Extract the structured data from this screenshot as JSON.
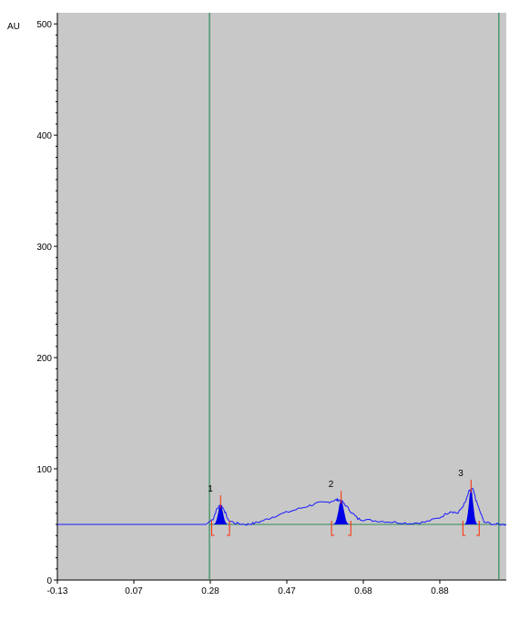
{
  "chart_data": {
    "type": "line",
    "ylabel": "AU",
    "ylim": [
      0,
      510
    ],
    "y_ticks": [
      0,
      100,
      200,
      300,
      400,
      500
    ],
    "x_tick_labels": [
      "-0.13",
      "0.07",
      "0.28",
      "0.47",
      "0.68",
      "0.88"
    ],
    "xlim": [
      -0.13,
      1.08
    ],
    "grid": false,
    "background_color": "#c8c8c8",
    "trace_color": "#1a1aff",
    "peak_fill_color": "#0000e6",
    "baseline_color": "#2e8b57",
    "marker_color": "#ff2a00",
    "vertical_lines_x": [
      0.28,
      1.06
    ],
    "baseline": 50,
    "peaks": [
      {
        "label": "1",
        "rf": 0.31,
        "height": 68
      },
      {
        "label": "2",
        "rf": 0.635,
        "height": 72
      },
      {
        "label": "3",
        "rf": 0.985,
        "height": 82
      }
    ],
    "series": [
      {
        "values_x": [
          -0.13,
          0.0,
          0.1,
          0.2,
          0.27,
          0.29,
          0.3,
          0.31,
          0.32,
          0.33,
          0.35,
          0.38,
          0.4,
          0.43,
          0.46,
          0.5,
          0.54,
          0.57,
          0.6,
          0.62,
          0.63,
          0.64,
          0.66,
          0.68,
          0.7,
          0.74,
          0.78,
          0.82,
          0.86,
          0.9,
          0.93,
          0.95,
          0.97,
          0.98,
          0.99,
          1.0,
          1.02,
          1.05,
          1.08
        ],
        "values_y": [
          50,
          50,
          50,
          50,
          50,
          55,
          64,
          68,
          63,
          54,
          51,
          50,
          51,
          54,
          58,
          62,
          66,
          69,
          70,
          72,
          72,
          70,
          62,
          55,
          54,
          53,
          52,
          51,
          52,
          56,
          62,
          60,
          70,
          80,
          82,
          70,
          52,
          50,
          50
        ]
      }
    ]
  }
}
